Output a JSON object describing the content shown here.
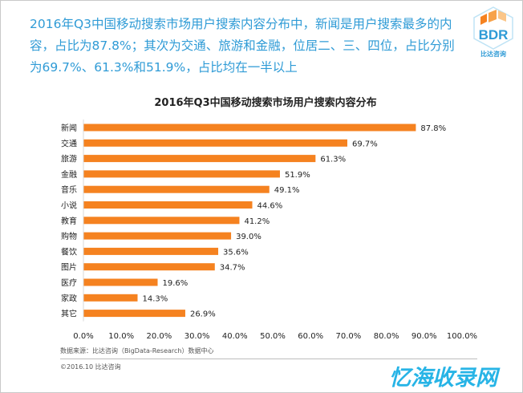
{
  "headline": "2016年Q3中国移动搜索市场用户搜索内容分布中，新闻是用户搜索最多的内容，占比为87.8%；其次为交通、旅游和金融，位居二、三、四位，占比分别为69.7%、61.3%和51.9%，占比均在一半以上",
  "logo": {
    "mark": "BDR",
    "name": "比达咨询"
  },
  "chart_data": {
    "type": "bar",
    "orientation": "horizontal",
    "title": "2016年Q3中国移动搜索市场用户搜索内容分布",
    "categories": [
      "新闻",
      "交通",
      "旅游",
      "金融",
      "音乐",
      "小说",
      "教育",
      "购物",
      "餐饮",
      "图片",
      "医疗",
      "家政",
      "其它"
    ],
    "values": [
      87.8,
      69.7,
      61.3,
      51.9,
      49.1,
      44.6,
      41.2,
      39.0,
      35.6,
      34.7,
      19.6,
      14.3,
      26.9
    ],
    "value_labels": [
      "87.8%",
      "69.7%",
      "61.3%",
      "51.9%",
      "49.1%",
      "44.6%",
      "41.2%",
      "39.0%",
      "35.6%",
      "34.7%",
      "19.6%",
      "14.3%",
      "26.9%"
    ],
    "xlim": [
      0,
      100
    ],
    "xticks": [
      "0.0%",
      "10.0%",
      "20.0%",
      "30.0%",
      "40.0%",
      "50.0%",
      "60.0%",
      "70.0%",
      "80.0%",
      "90.0%",
      "100.0%"
    ],
    "grid": false,
    "bar_color": "#f58220"
  },
  "source": "数据来源：比达咨询（BigData-Research）数据中心",
  "copyright": "©2016.10  比达咨询",
  "watermark": "忆海收录网"
}
